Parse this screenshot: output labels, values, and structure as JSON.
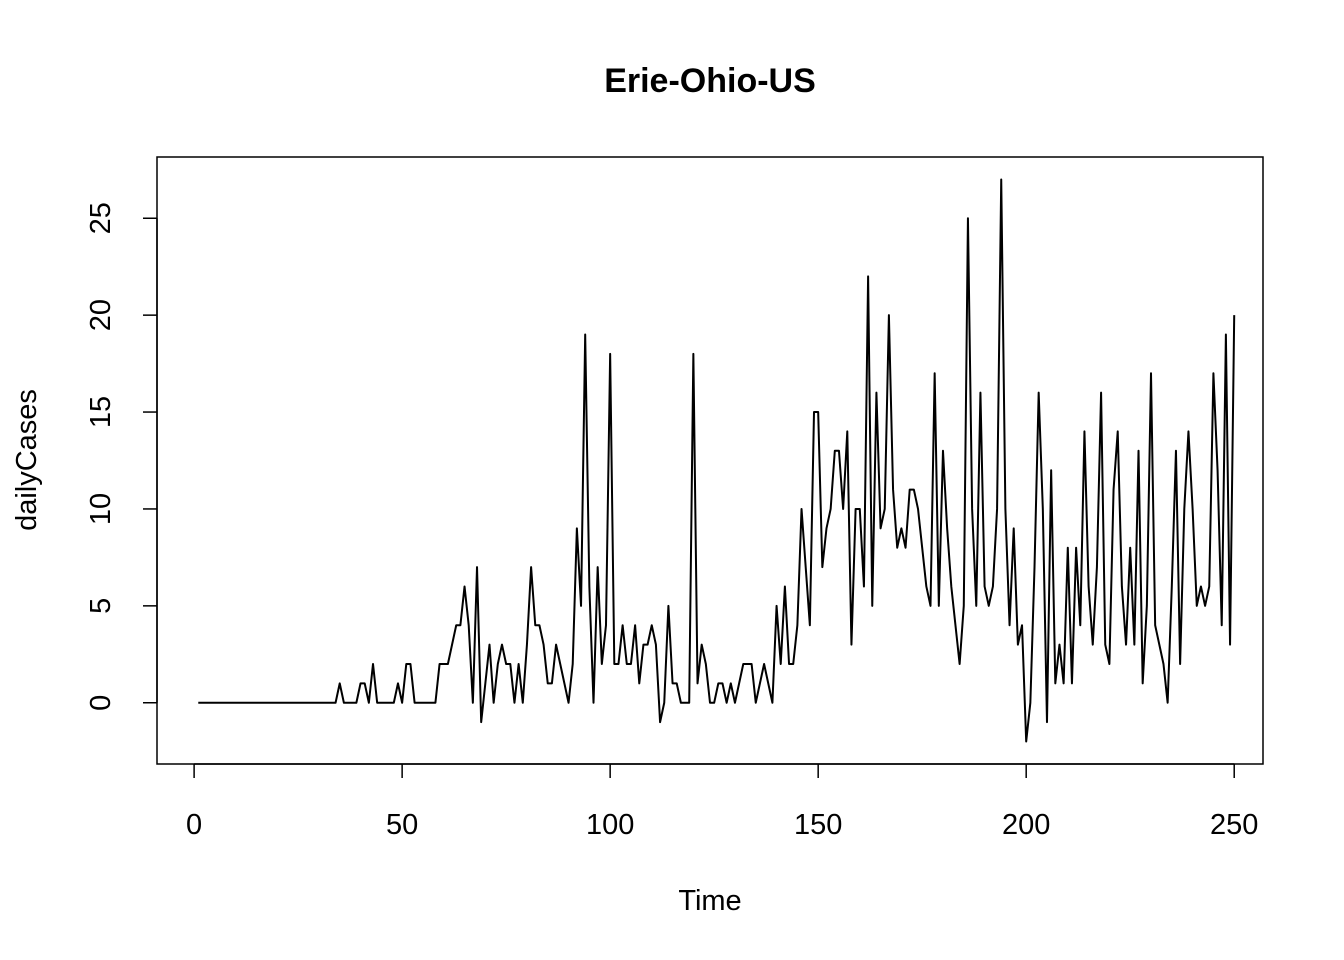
{
  "chart_data": {
    "type": "line",
    "title": "Erie-Ohio-US",
    "xlabel": "Time",
    "ylabel": "dailyCases",
    "xlim": [
      -8.92,
      256.92
    ],
    "ylim": [
      -3.16,
      28.16
    ],
    "xticks": [
      0,
      50,
      100,
      150,
      200,
      250
    ],
    "yticks": [
      0,
      5,
      10,
      15,
      20,
      25
    ],
    "x_tick_labels": [
      "0",
      "50",
      "100",
      "150",
      "200",
      "250"
    ],
    "y_tick_labels": [
      "0",
      "5",
      "10",
      "15",
      "20",
      "25"
    ],
    "grid": false,
    "line_color": "#000000",
    "series": [
      {
        "x_start": 1,
        "values": [
          0,
          0,
          0,
          0,
          0,
          0,
          0,
          0,
          0,
          0,
          0,
          0,
          0,
          0,
          0,
          0,
          0,
          0,
          0,
          0,
          0,
          0,
          0,
          0,
          0,
          0,
          0,
          0,
          0,
          0,
          0,
          0,
          0,
          0,
          1,
          0,
          0,
          0,
          0,
          1,
          1,
          0,
          2,
          0,
          0,
          0,
          0,
          0,
          1,
          0,
          2,
          2,
          0,
          0,
          0,
          0,
          0,
          0,
          2,
          2,
          2,
          3,
          4,
          4,
          6,
          4,
          0,
          7,
          -1,
          1,
          3,
          0,
          2,
          3,
          2,
          2,
          0,
          2,
          0,
          3,
          7,
          4,
          4,
          3,
          1,
          1,
          3,
          2,
          1,
          0,
          2,
          9,
          5,
          19,
          6,
          0,
          7,
          2,
          4,
          18,
          2,
          2,
          4,
          2,
          2,
          4,
          1,
          3,
          3,
          4,
          3,
          -1,
          0,
          5,
          1,
          1,
          0,
          0,
          0,
          18,
          1,
          3,
          2,
          0,
          0,
          1,
          1,
          0,
          1,
          0,
          1,
          2,
          2,
          2,
          0,
          1,
          2,
          1,
          0,
          5,
          2,
          6,
          2,
          2,
          4,
          10,
          7,
          4,
          15,
          15,
          7,
          9,
          10,
          13,
          13,
          10,
          14,
          3,
          10,
          10,
          6,
          22,
          5,
          16,
          9,
          10,
          20,
          11,
          8,
          9,
          8,
          11,
          11,
          10,
          8,
          6,
          5,
          17,
          5,
          13,
          9,
          6,
          4,
          2,
          5,
          25,
          10,
          5,
          16,
          6,
          5,
          6,
          10,
          27,
          10,
          4,
          9,
          3,
          4,
          -2,
          0,
          7,
          16,
          10,
          -1,
          12,
          1,
          3,
          1,
          8,
          1,
          8,
          4,
          14,
          6,
          3,
          7,
          16,
          3,
          2,
          11,
          14,
          6,
          3,
          8,
          3,
          13,
          1,
          5,
          17,
          4,
          3,
          2,
          0,
          6,
          13,
          2,
          10,
          14,
          10,
          5,
          6,
          5,
          6,
          17,
          12,
          4,
          19,
          3,
          20
        ]
      }
    ]
  }
}
